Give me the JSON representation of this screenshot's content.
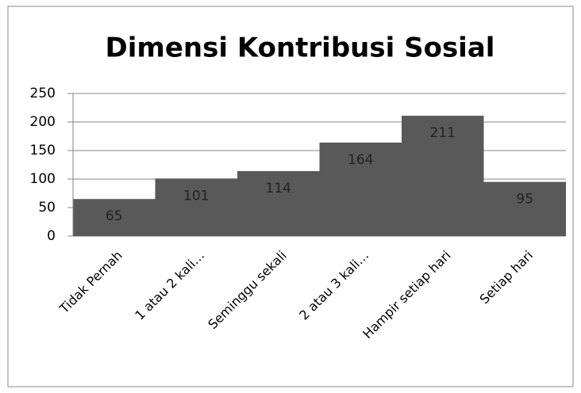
{
  "chart_data": {
    "type": "bar",
    "title": "Dimensi Kontribusi Sosial",
    "categories": [
      "Tidak Pernah",
      "1 atau 2 kali…",
      "Seminggu sekali",
      "2 atau 3 kali…",
      "Hampir setiap hari",
      "Setiap hari"
    ],
    "values": [
      65,
      101,
      114,
      164,
      211,
      95
    ],
    "color": "#595959",
    "ylim": [
      0,
      250
    ],
    "yticks": [
      0,
      50,
      100,
      150,
      200,
      250
    ],
    "grid": true
  }
}
